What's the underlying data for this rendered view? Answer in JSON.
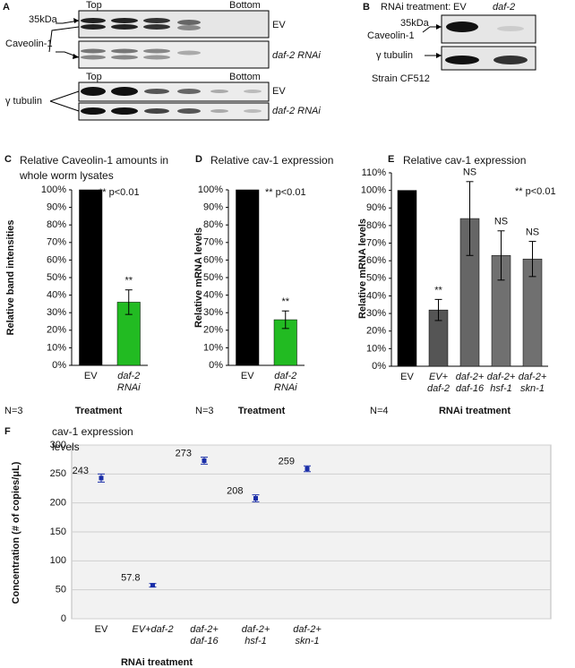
{
  "panel_a": {
    "label": "A",
    "top": "Top",
    "bottom": "Bottom",
    "marker": "35kDa",
    "protein": "Caveolin-1",
    "lanes": [
      "EV",
      "daf-2 RNAi"
    ],
    "loading": {
      "protein": "γ tubulin",
      "top": "Top",
      "bottom": "Bottom",
      "lanes": [
        "EV",
        "daf-2 RNAi"
      ]
    }
  },
  "panel_b": {
    "label": "B",
    "treatment": "RNAi treatment:",
    "lanes": [
      "EV",
      "daf-2"
    ],
    "marker": "35kDa",
    "protein": "Caveolin-1",
    "loading": "γ tubulin",
    "strain": "Strain CF512"
  },
  "chart_data": [
    {
      "type": "bar",
      "panel": "C",
      "title": "Relative Caveolin-1 amounts in whole worm lysates",
      "ylabel": "Relative band intensities",
      "xlabel": "Treatment",
      "n_label": "N=3",
      "annotation": "** p<0.01",
      "categories": [
        "EV",
        "daf-2 RNAi"
      ],
      "values": [
        100,
        36
      ],
      "errors": [
        0,
        7
      ],
      "markers": [
        null,
        "**"
      ],
      "colors": [
        "#000000",
        "#22bb22"
      ],
      "ylim": [
        0,
        100
      ],
      "yticks": [
        {
          "value": 0,
          "label": "0%"
        },
        {
          "value": 10,
          "label": "10%"
        },
        {
          "value": 20,
          "label": "20%"
        },
        {
          "value": 30,
          "label": "30%"
        },
        {
          "value": 40,
          "label": "40%"
        },
        {
          "value": 50,
          "label": "50%"
        },
        {
          "value": 60,
          "label": "60%"
        },
        {
          "value": 70,
          "label": "70%"
        },
        {
          "value": 80,
          "label": "80%"
        },
        {
          "value": 90,
          "label": "90%"
        },
        {
          "value": 100,
          "label": "100%"
        }
      ]
    },
    {
      "type": "bar",
      "panel": "D",
      "title": "Relative cav-1 expression",
      "ylabel": "Relative mRNA levels",
      "xlabel": "Treatment",
      "n_label": "N=3",
      "annotation": "** p<0.01",
      "categories": [
        "EV",
        "daf-2 RNAi"
      ],
      "values": [
        100,
        26
      ],
      "errors": [
        0,
        5
      ],
      "markers": [
        null,
        "**"
      ],
      "colors": [
        "#000000",
        "#22bb22"
      ],
      "ylim": [
        0,
        100
      ],
      "yticks": [
        {
          "value": 0,
          "label": "0%"
        },
        {
          "value": 10,
          "label": "10%"
        },
        {
          "value": 20,
          "label": "20%"
        },
        {
          "value": 30,
          "label": "30%"
        },
        {
          "value": 40,
          "label": "40%"
        },
        {
          "value": 50,
          "label": "50%"
        },
        {
          "value": 60,
          "label": "60%"
        },
        {
          "value": 70,
          "label": "70%"
        },
        {
          "value": 80,
          "label": "80%"
        },
        {
          "value": 90,
          "label": "90%"
        },
        {
          "value": 100,
          "label": "100%"
        }
      ]
    },
    {
      "type": "bar",
      "panel": "E",
      "title": "Relative cav-1 expression",
      "ylabel": "Relative mRNA levels",
      "xlabel": "RNAi treatment",
      "n_label": "N=4",
      "annotation": "** p<0.01",
      "categories": [
        "EV",
        "EV+ daf-2",
        "daf-2+ daf-16",
        "daf-2+ hsf-1",
        "daf-2+ skn-1"
      ],
      "values": [
        100,
        32,
        84,
        63,
        61
      ],
      "errors": [
        0,
        6,
        21,
        14,
        10
      ],
      "markers": [
        null,
        "**",
        "NS",
        "NS",
        "NS"
      ],
      "colors": [
        "#000000",
        "#555555",
        "#666666",
        "#707070",
        "#707070"
      ],
      "ylim": [
        0,
        110
      ],
      "yticks": [
        {
          "value": 0,
          "label": "0%"
        },
        {
          "value": 10,
          "label": "10%"
        },
        {
          "value": 20,
          "label": "20%"
        },
        {
          "value": 30,
          "label": "30%"
        },
        {
          "value": 40,
          "label": "40%"
        },
        {
          "value": 50,
          "label": "50%"
        },
        {
          "value": 60,
          "label": "60%"
        },
        {
          "value": 70,
          "label": "70%"
        },
        {
          "value": 80,
          "label": "80%"
        },
        {
          "value": 90,
          "label": "90%"
        },
        {
          "value": 100,
          "label": "100%"
        },
        {
          "value": 110,
          "label": "110%"
        }
      ]
    },
    {
      "type": "point",
      "panel": "F",
      "title": "cav-1 expression levels",
      "ylabel": "Concentration (# of copies/μL)",
      "xlabel": "RNAi treatment",
      "categories": [
        "EV",
        "EV+daf-2",
        "daf-2+ daf-16",
        "daf-2+ hsf-1",
        "daf-2+ skn-1"
      ],
      "values": [
        243,
        57.8,
        273,
        208,
        259
      ],
      "errors": [
        7,
        3,
        6,
        6,
        5
      ],
      "color": "#1a2ea8",
      "ylim": [
        0,
        300
      ],
      "yticks": [
        0,
        50,
        100,
        150,
        200,
        250,
        300
      ],
      "grid": true
    }
  ]
}
